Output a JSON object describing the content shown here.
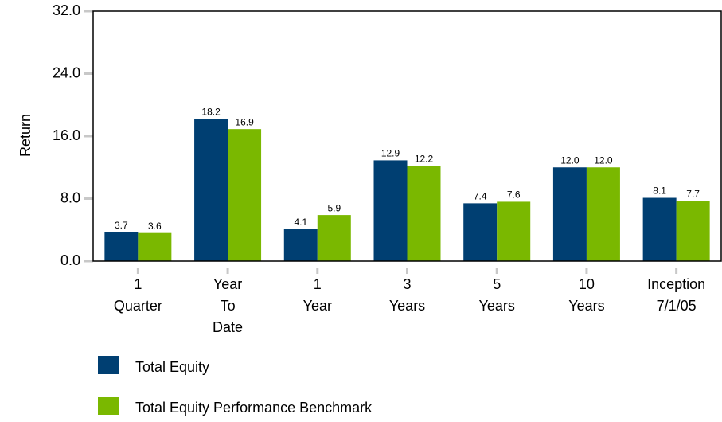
{
  "chart_data": {
    "type": "bar",
    "y_label": "Return",
    "categories": [
      "1 Quarter",
      "Year To Date",
      "1 Year",
      "3 Years",
      "5 Years",
      "10 Years",
      "Inception 7/1/05"
    ],
    "series": [
      {
        "name": "Total Equity",
        "color": "#003f72",
        "values": [
          3.7,
          18.2,
          4.1,
          12.9,
          7.4,
          12.0,
          8.1
        ],
        "value_labels": [
          "3.7",
          "18.2",
          "4.1",
          "12.9",
          "7.4",
          "12.0",
          "8.1"
        ]
      },
      {
        "name": "Total Equity Performance Benchmark",
        "color": "#7ab800",
        "values": [
          3.6,
          16.9,
          5.9,
          12.2,
          7.6,
          12.0,
          7.7
        ],
        "value_labels": [
          "3.6",
          "16.9",
          "5.9",
          "12.2",
          "7.6",
          "12.0",
          "7.7"
        ]
      }
    ],
    "ylim": [
      0,
      32
    ],
    "yticks": [
      {
        "value": 0,
        "label": "0.0"
      },
      {
        "value": 8,
        "label": "8.0"
      },
      {
        "value": 16,
        "label": "16.0"
      },
      {
        "value": 24,
        "label": "24.0"
      },
      {
        "value": 32,
        "label": "32.0"
      }
    ],
    "grid": false
  }
}
